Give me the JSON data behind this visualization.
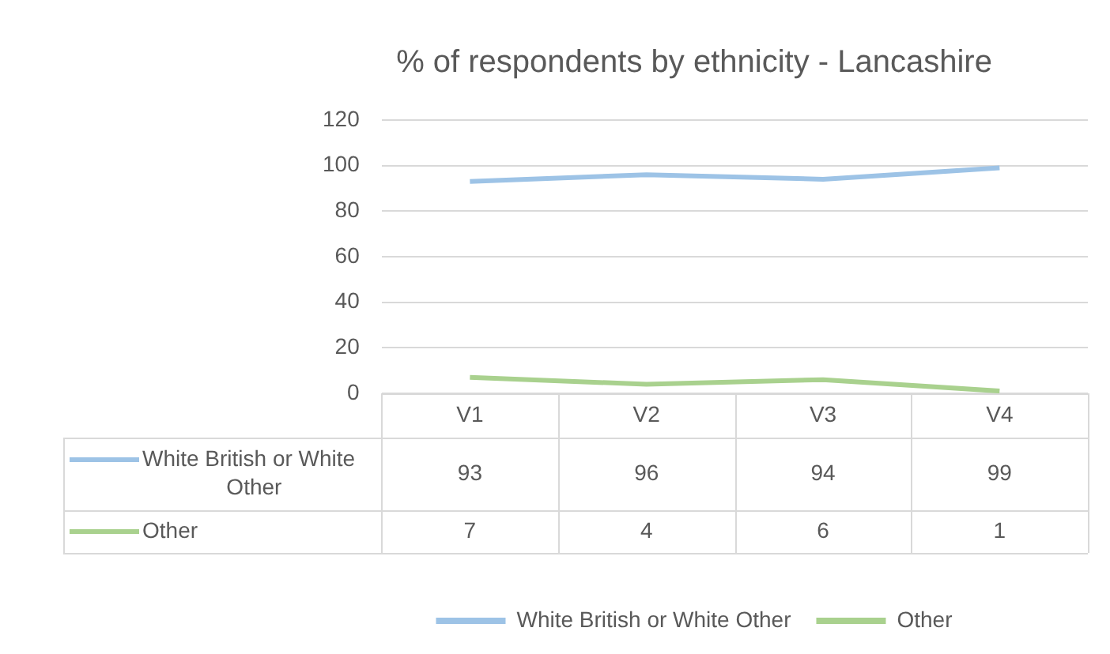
{
  "chart_data": {
    "type": "line",
    "title": "% of respondents by ethnicity - Lancashire",
    "categories": [
      "V1",
      "V2",
      "V3",
      "V4"
    ],
    "series": [
      {
        "name": "White British or White Other",
        "color": "#9dc3e6",
        "values": [
          93,
          96,
          94,
          99
        ]
      },
      {
        "name": "Other",
        "color": "#a9d18e",
        "values": [
          7,
          4,
          6,
          1
        ]
      }
    ],
    "ylim": [
      0,
      120
    ],
    "yticks": [
      0,
      20,
      40,
      60,
      80,
      100,
      120
    ],
    "grid": "y",
    "legend": "bottom",
    "data_labels": true,
    "marker": "none"
  }
}
